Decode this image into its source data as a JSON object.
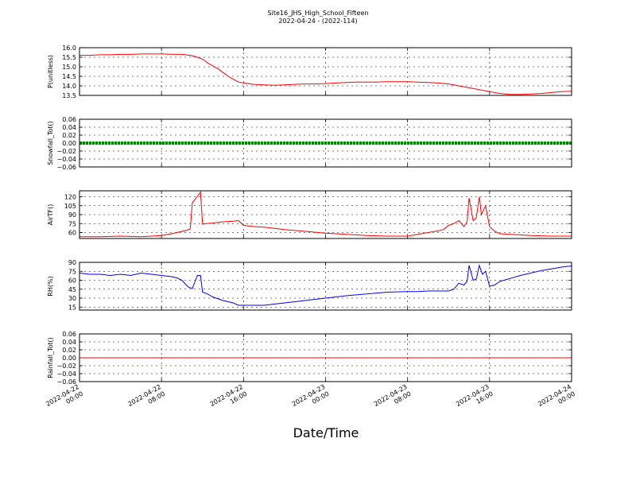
{
  "chart_data": {
    "type": "line",
    "title": "Site16_JHS_High_School_Fifteen",
    "subtitle": "2022-04-24 - (2022-114)",
    "xlabel": "Date/Time",
    "x_ticks": [
      {
        "hour": 0,
        "line1": "2022-04-22",
        "line2": "00:00"
      },
      {
        "hour": 8,
        "line1": "2022-04-22",
        "line2": "08:00"
      },
      {
        "hour": 16,
        "line1": "2022-04-22",
        "line2": "16:00"
      },
      {
        "hour": 24,
        "line1": "2022-04-23",
        "line2": "00:00"
      },
      {
        "hour": 32,
        "line1": "2022-04-23",
        "line2": "08:00"
      },
      {
        "hour": 40,
        "line1": "2022-04-23",
        "line2": "16:00"
      },
      {
        "hour": 48,
        "line1": "2022-04-24",
        "line2": "00:00"
      }
    ],
    "xlim_hours": [
      0,
      48
    ],
    "panels": [
      {
        "ylabel": "P(unitless)",
        "ylim": [
          13.5,
          16.0
        ],
        "yticks": [
          "16.0",
          "15.5",
          "15.0",
          "14.5",
          "14.0",
          "13.5"
        ],
        "ytick_values": [
          16.0,
          15.5,
          15.0,
          14.5,
          14.0,
          13.5
        ],
        "color": "#ff0000",
        "marker": false,
        "x": [
          0,
          1,
          2,
          3,
          4,
          5,
          6,
          7,
          8,
          9,
          10,
          10.5,
          11,
          11.5,
          12,
          12.5,
          13,
          13.5,
          14,
          14.5,
          15,
          15.5,
          16,
          17,
          18,
          19,
          20,
          21,
          22,
          23,
          24,
          25,
          26,
          27,
          28,
          29,
          30,
          31,
          32,
          33,
          34,
          35,
          36,
          37,
          38,
          39,
          40,
          41,
          42,
          43,
          44,
          45,
          46,
          47,
          48
        ],
        "y": [
          15.6,
          15.6,
          15.63,
          15.63,
          15.65,
          15.65,
          15.67,
          15.67,
          15.67,
          15.66,
          15.65,
          15.62,
          15.58,
          15.5,
          15.4,
          15.2,
          15.05,
          14.9,
          14.7,
          14.5,
          14.35,
          14.2,
          14.15,
          14.08,
          14.05,
          14.03,
          14.05,
          14.08,
          14.1,
          14.1,
          14.12,
          14.15,
          14.18,
          14.2,
          14.2,
          14.2,
          14.22,
          14.22,
          14.22,
          14.2,
          14.18,
          14.15,
          14.1,
          14.0,
          13.9,
          13.8,
          13.7,
          13.6,
          13.55,
          13.55,
          13.57,
          13.6,
          13.65,
          13.7,
          13.72
        ]
      },
      {
        "ylabel": "Snowfall_Tot()",
        "ylim": [
          -0.06,
          0.06
        ],
        "yticks": [
          "0.06",
          "0.04",
          "0.02",
          "0.00",
          "−0.02",
          "−0.04",
          "−0.06"
        ],
        "ytick_values": [
          0.06,
          0.04,
          0.02,
          0.0,
          -0.02,
          -0.04,
          -0.06
        ],
        "color": "#008000",
        "marker": true,
        "x": [
          0,
          48
        ],
        "y": [
          0.0,
          0.0
        ]
      },
      {
        "ylabel": "AirTF()",
        "ylim": [
          50,
          130
        ],
        "yticks": [
          "120",
          "105",
          "90",
          "75",
          "60"
        ],
        "ytick_values": [
          120,
          105,
          90,
          75,
          60
        ],
        "color": "#ff0000",
        "marker": false,
        "x": [
          0,
          2,
          4,
          6,
          8,
          9,
          10,
          10.5,
          10.8,
          11,
          11.4,
          11.8,
          12,
          12.3,
          13,
          14,
          15,
          15.5,
          16,
          17,
          18,
          19,
          20,
          22,
          24,
          26,
          28,
          30,
          32,
          33,
          34,
          35,
          35.5,
          36,
          36.5,
          37,
          37.5,
          37.8,
          38,
          38.4,
          38.7,
          39,
          39.2,
          39.6,
          40,
          40.5,
          41,
          42,
          44,
          46,
          48
        ],
        "y": [
          53,
          53,
          54,
          53,
          55,
          58,
          62,
          64,
          66,
          110,
          118,
          128,
          74,
          75,
          76,
          78,
          79,
          80,
          72,
          70,
          69,
          67,
          65,
          62,
          59,
          57,
          55,
          54,
          54,
          57,
          60,
          63,
          65,
          72,
          75,
          80,
          70,
          78,
          118,
          80,
          85,
          120,
          90,
          105,
          70,
          62,
          58,
          57,
          55,
          54,
          54
        ]
      },
      {
        "ylabel": "RH(%)",
        "ylim": [
          10,
          90
        ],
        "yticks": [
          "90",
          "75",
          "60",
          "45",
          "30",
          "15"
        ],
        "ytick_values": [
          90,
          75,
          60,
          45,
          30,
          15
        ],
        "color": "#0000ff",
        "marker": false,
        "x": [
          0,
          1,
          2,
          3,
          4,
          5,
          6,
          7,
          8,
          9,
          9.5,
          10,
          10.3,
          10.6,
          11,
          11.5,
          11.8,
          12,
          12.5,
          13,
          14,
          15,
          15.5,
          16,
          17,
          18,
          20,
          22,
          24,
          26,
          28,
          30,
          32,
          33,
          34,
          35,
          36,
          36.5,
          37,
          37.5,
          37.8,
          38,
          38.4,
          38.7,
          39,
          39.3,
          39.6,
          40,
          40.5,
          41,
          42,
          43,
          44,
          45,
          46,
          47,
          48
        ],
        "y": [
          72,
          70,
          70,
          68,
          70,
          68,
          72,
          70,
          68,
          66,
          64,
          60,
          54,
          49,
          46,
          68,
          68,
          40,
          37,
          32,
          26,
          22,
          18,
          18,
          18,
          18,
          22,
          26,
          30,
          34,
          37,
          40,
          41,
          41,
          42,
          42,
          42,
          45,
          55,
          52,
          58,
          85,
          60,
          62,
          85,
          70,
          75,
          50,
          52,
          58,
          63,
          68,
          72,
          76,
          79,
          82,
          84
        ]
      },
      {
        "ylabel": "Rainfall_Tot()",
        "ylim": [
          -0.06,
          0.06
        ],
        "yticks": [
          "0.06",
          "0.04",
          "0.02",
          "0.00",
          "−0.02",
          "−0.04",
          "−0.06"
        ],
        "ytick_values": [
          0.06,
          0.04,
          0.02,
          0.0,
          -0.02,
          -0.04,
          -0.06
        ],
        "color": "#ff0000",
        "marker": false,
        "x": [
          0,
          48
        ],
        "y": [
          0.0,
          0.0
        ]
      }
    ]
  }
}
